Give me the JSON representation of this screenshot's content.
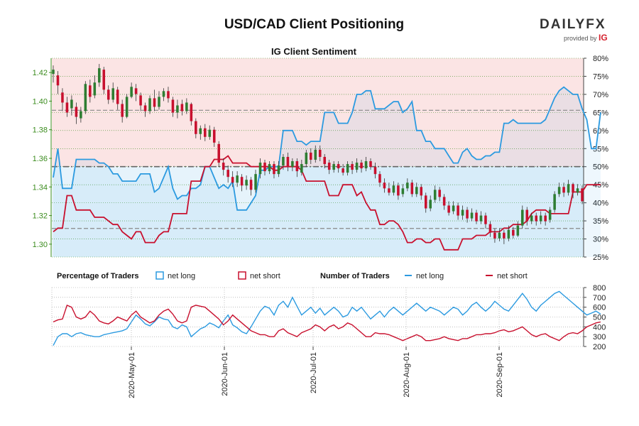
{
  "header": {
    "title": "USD/CAD Client Positioning"
  },
  "brand": {
    "name_part1": "DAILY",
    "name_part2": "FX",
    "tagline": "provided by",
    "tagline_brand": "IG"
  },
  "colors": {
    "long": "#2b9ae0",
    "short": "#c8102e",
    "price_axis": "#3b8c1e",
    "bg_short": "#fbe4e4",
    "bg_long": "#e6f3fb",
    "grid": "#3b8c1e",
    "candle_up": "#2e7d32",
    "candle_down": "#c8102e"
  },
  "chart_data": [
    {
      "id": "sentiment",
      "type": "line",
      "title": "IG Client Sentiment",
      "price_axis": {
        "ticks": [
          "1.42",
          "1.40",
          "1.38",
          "1.36",
          "1.34",
          "1.32",
          "1.30"
        ],
        "range": [
          1.291,
          1.43
        ]
      },
      "pct_axis": {
        "ticks": [
          "80%",
          "75%",
          "70%",
          "65%",
          "60%",
          "55%",
          "50%",
          "45%",
          "40%",
          "35%",
          "30%",
          "25%"
        ],
        "range": [
          25,
          80
        ]
      },
      "reference_lines": {
        "pct_long_mean": 65.6,
        "pct_short_mean": 32.9,
        "midline": 50
      },
      "candles": [
        [
          1.419,
          1.422,
          1.425,
          1.413
        ],
        [
          1.418,
          1.411,
          1.421,
          1.405
        ],
        [
          1.406,
          1.399,
          1.409,
          1.393
        ],
        [
          1.399,
          1.392,
          1.403,
          1.389
        ],
        [
          1.395,
          1.401,
          1.404,
          1.39
        ],
        [
          1.396,
          1.389,
          1.399,
          1.384
        ],
        [
          1.388,
          1.393,
          1.396,
          1.385
        ],
        [
          1.393,
          1.412,
          1.414,
          1.391
        ],
        [
          1.411,
          1.403,
          1.415,
          1.399
        ],
        [
          1.404,
          1.413,
          1.418,
          1.402
        ],
        [
          1.413,
          1.423,
          1.426,
          1.41
        ],
        [
          1.422,
          1.408,
          1.424,
          1.405
        ],
        [
          1.408,
          1.401,
          1.411,
          1.398
        ],
        [
          1.401,
          1.409,
          1.413,
          1.399
        ],
        [
          1.408,
          1.398,
          1.41,
          1.394
        ],
        [
          1.398,
          1.389,
          1.401,
          1.385
        ],
        [
          1.389,
          1.403,
          1.405,
          1.388
        ],
        [
          1.403,
          1.41,
          1.413,
          1.402
        ],
        [
          1.409,
          1.405,
          1.412,
          1.4
        ],
        [
          1.404,
          1.397,
          1.406,
          1.393
        ],
        [
          1.397,
          1.393,
          1.399,
          1.389
        ],
        [
          1.393,
          1.402,
          1.404,
          1.391
        ],
        [
          1.402,
          1.396,
          1.408,
          1.393
        ],
        [
          1.396,
          1.403,
          1.407,
          1.394
        ],
        [
          1.403,
          1.407,
          1.409,
          1.4
        ],
        [
          1.407,
          1.402,
          1.41,
          1.399
        ],
        [
          1.401,
          1.392,
          1.403,
          1.389
        ],
        [
          1.392,
          1.397,
          1.401,
          1.388
        ],
        [
          1.398,
          1.393,
          1.401,
          1.39
        ],
        [
          1.393,
          1.399,
          1.402,
          1.391
        ],
        [
          1.398,
          1.386,
          1.399,
          1.383
        ],
        [
          1.386,
          1.377,
          1.388,
          1.374
        ],
        [
          1.377,
          1.381,
          1.383,
          1.373
        ],
        [
          1.381,
          1.375,
          1.384,
          1.372
        ],
        [
          1.375,
          1.38,
          1.383,
          1.373
        ],
        [
          1.38,
          1.371,
          1.382,
          1.368
        ],
        [
          1.37,
          1.357,
          1.372,
          1.354
        ],
        [
          1.357,
          1.352,
          1.36,
          1.348
        ],
        [
          1.352,
          1.347,
          1.355,
          1.343
        ],
        [
          1.347,
          1.343,
          1.351,
          1.34
        ],
        [
          1.343,
          1.348,
          1.351,
          1.34
        ],
        [
          1.347,
          1.341,
          1.349,
          1.337
        ],
        [
          1.341,
          1.345,
          1.348,
          1.338
        ],
        [
          1.345,
          1.338,
          1.347,
          1.334
        ],
        [
          1.338,
          1.349,
          1.352,
          1.336
        ],
        [
          1.349,
          1.357,
          1.36,
          1.346
        ],
        [
          1.357,
          1.351,
          1.359,
          1.348
        ],
        [
          1.351,
          1.356,
          1.358,
          1.349
        ],
        [
          1.356,
          1.349,
          1.358,
          1.346
        ],
        [
          1.349,
          1.355,
          1.358,
          1.347
        ],
        [
          1.355,
          1.361,
          1.363,
          1.352
        ],
        [
          1.361,
          1.354,
          1.364,
          1.351
        ],
        [
          1.354,
          1.358,
          1.36,
          1.351
        ],
        [
          1.358,
          1.351,
          1.36,
          1.347
        ],
        [
          1.35,
          1.356,
          1.359,
          1.348
        ],
        [
          1.356,
          1.364,
          1.366,
          1.354
        ],
        [
          1.364,
          1.359,
          1.367,
          1.356
        ],
        [
          1.359,
          1.366,
          1.369,
          1.357
        ],
        [
          1.366,
          1.361,
          1.369,
          1.358
        ],
        [
          1.361,
          1.356,
          1.363,
          1.353
        ],
        [
          1.357,
          1.352,
          1.359,
          1.349
        ],
        [
          1.352,
          1.356,
          1.358,
          1.35
        ],
        [
          1.356,
          1.353,
          1.358,
          1.35
        ],
        [
          1.353,
          1.35,
          1.356,
          1.348
        ],
        [
          1.35,
          1.356,
          1.358,
          1.348
        ],
        [
          1.356,
          1.352,
          1.358,
          1.349
        ],
        [
          1.352,
          1.357,
          1.36,
          1.35
        ],
        [
          1.357,
          1.353,
          1.359,
          1.35
        ],
        [
          1.353,
          1.358,
          1.361,
          1.351
        ],
        [
          1.358,
          1.354,
          1.36,
          1.352
        ],
        [
          1.354,
          1.349,
          1.357,
          1.346
        ],
        [
          1.349,
          1.343,
          1.351,
          1.34
        ],
        [
          1.343,
          1.339,
          1.346,
          1.336
        ],
        [
          1.339,
          1.336,
          1.343,
          1.334
        ],
        [
          1.336,
          1.341,
          1.344,
          1.334
        ],
        [
          1.341,
          1.334,
          1.343,
          1.331
        ],
        [
          1.335,
          1.339,
          1.342,
          1.333
        ],
        [
          1.339,
          1.343,
          1.346,
          1.337
        ],
        [
          1.343,
          1.335,
          1.345,
          1.333
        ],
        [
          1.335,
          1.34,
          1.343,
          1.333
        ],
        [
          1.34,
          1.334,
          1.342,
          1.331
        ],
        [
          1.334,
          1.325,
          1.336,
          1.322
        ],
        [
          1.325,
          1.331,
          1.334,
          1.323
        ],
        [
          1.331,
          1.338,
          1.341,
          1.329
        ],
        [
          1.338,
          1.333,
          1.34,
          1.33
        ],
        [
          1.333,
          1.327,
          1.335,
          1.324
        ],
        [
          1.327,
          1.322,
          1.33,
          1.32
        ],
        [
          1.323,
          1.327,
          1.33,
          1.321
        ],
        [
          1.327,
          1.32,
          1.329,
          1.317
        ],
        [
          1.32,
          1.324,
          1.327,
          1.317
        ],
        [
          1.324,
          1.318,
          1.326,
          1.315
        ],
        [
          1.318,
          1.322,
          1.325,
          1.316
        ],
        [
          1.322,
          1.316,
          1.324,
          1.314
        ],
        [
          1.316,
          1.32,
          1.323,
          1.314
        ],
        [
          1.32,
          1.314,
          1.322,
          1.311
        ],
        [
          1.314,
          1.308,
          1.316,
          1.305
        ],
        [
          1.308,
          1.304,
          1.311,
          1.301
        ],
        [
          1.304,
          1.308,
          1.311,
          1.302
        ],
        [
          1.308,
          1.304,
          1.31,
          1.3
        ],
        [
          1.304,
          1.31,
          1.313,
          1.302
        ],
        [
          1.31,
          1.306,
          1.312,
          1.304
        ],
        [
          1.306,
          1.313,
          1.316,
          1.305
        ],
        [
          1.313,
          1.324,
          1.327,
          1.311
        ],
        [
          1.324,
          1.316,
          1.326,
          1.313
        ],
        [
          1.316,
          1.32,
          1.322,
          1.314
        ],
        [
          1.32,
          1.316,
          1.322,
          1.313
        ],
        [
          1.316,
          1.32,
          1.323,
          1.314
        ],
        [
          1.32,
          1.316,
          1.322,
          1.313
        ],
        [
          1.317,
          1.324,
          1.326,
          1.315
        ],
        [
          1.324,
          1.335,
          1.337,
          1.322
        ],
        [
          1.335,
          1.34,
          1.343,
          1.333
        ],
        [
          1.34,
          1.336,
          1.343,
          1.333
        ],
        [
          1.336,
          1.342,
          1.345,
          1.334
        ],
        [
          1.342,
          1.336,
          1.343,
          1.332
        ],
        [
          1.336,
          1.339,
          1.342,
          1.334
        ],
        [
          1.339,
          1.33,
          1.341,
          1.328
        ]
      ],
      "net_long_pct": [
        47,
        55,
        44,
        44,
        44,
        52,
        52,
        52,
        52,
        52,
        51,
        51,
        50,
        48,
        48,
        46,
        46,
        46,
        46,
        48,
        48,
        48,
        43,
        44,
        47,
        50,
        44,
        41,
        42,
        42,
        44,
        44,
        45,
        50,
        50,
        47,
        44,
        45,
        44,
        46,
        38,
        38,
        38,
        40,
        42,
        49,
        49,
        50,
        50,
        50,
        60,
        60,
        60,
        57,
        57,
        56,
        57,
        57,
        57,
        65,
        65,
        65,
        62,
        62,
        62,
        65,
        70,
        70,
        71,
        71,
        66,
        66,
        66,
        67,
        68,
        68,
        65,
        66,
        68,
        60,
        60,
        57,
        57,
        55,
        55,
        55,
        53,
        51,
        51,
        54,
        55,
        53,
        52,
        52,
        53,
        53,
        54,
        54,
        62,
        62,
        63,
        62,
        62,
        62,
        62,
        62,
        62,
        63,
        66,
        69,
        71,
        72,
        71,
        70,
        70,
        66,
        63,
        55,
        55,
        65
      ],
      "net_short_pct": [
        32,
        33,
        33,
        42,
        42,
        38,
        38,
        38,
        38,
        36,
        36,
        36,
        35,
        34,
        34,
        32,
        31,
        30,
        32,
        32,
        29,
        29,
        29,
        31,
        32,
        32,
        37,
        37,
        37,
        37,
        46,
        46,
        46,
        50,
        50,
        52,
        52,
        52,
        53,
        51,
        51,
        51,
        51,
        50,
        50,
        50,
        50,
        50,
        49,
        49,
        50,
        50,
        50,
        50,
        49,
        46,
        46,
        46,
        46,
        46,
        42,
        42,
        42,
        45,
        45,
        45,
        42,
        43,
        40,
        38,
        38,
        34,
        34,
        35,
        35,
        34,
        32,
        29,
        29,
        30,
        30,
        29,
        29,
        30,
        30,
        27,
        27,
        27,
        27,
        30,
        30,
        30,
        31,
        31,
        31,
        32,
        32,
        32,
        33,
        33,
        34,
        34,
        34,
        35,
        37,
        38,
        38,
        38,
        37,
        37,
        37,
        37,
        37,
        43,
        43,
        43,
        45,
        45,
        45,
        45
      ]
    },
    {
      "id": "traders",
      "type": "line",
      "y_axis": {
        "ticks": [
          "800",
          "700",
          "600",
          "500",
          "400",
          "300",
          "200"
        ],
        "range": [
          200,
          800
        ]
      },
      "x_axis": {
        "ticks": [
          "2020-May-01",
          "2020-Jun-01",
          "2020-Jul-01",
          "2020-Aug-01",
          "2020-Sep-01"
        ]
      },
      "net_long_count": [
        210,
        300,
        330,
        330,
        300,
        330,
        340,
        320,
        310,
        300,
        300,
        320,
        330,
        340,
        350,
        360,
        380,
        450,
        520,
        480,
        430,
        410,
        450,
        500,
        480,
        470,
        400,
        380,
        420,
        400,
        300,
        340,
        380,
        400,
        440,
        420,
        390,
        460,
        520,
        420,
        390,
        350,
        330,
        400,
        480,
        560,
        610,
        590,
        520,
        620,
        660,
        600,
        700,
        610,
        520,
        560,
        600,
        540,
        590,
        520,
        560,
        600,
        560,
        500,
        520,
        600,
        560,
        600,
        540,
        480,
        520,
        560,
        500,
        560,
        600,
        560,
        520,
        560,
        600,
        640,
        600,
        560,
        600,
        580,
        560,
        520,
        560,
        600,
        580,
        520,
        560,
        620,
        650,
        600,
        560,
        600,
        660,
        620,
        580,
        560,
        620,
        680,
        740,
        680,
        600,
        560,
        620,
        660,
        700,
        740,
        760,
        720,
        680,
        640,
        600,
        560,
        520,
        540,
        560,
        530
      ],
      "net_short_count": [
        450,
        470,
        480,
        620,
        600,
        500,
        480,
        500,
        560,
        520,
        460,
        440,
        430,
        460,
        500,
        480,
        460,
        520,
        560,
        500,
        470,
        440,
        460,
        520,
        560,
        580,
        530,
        460,
        440,
        460,
        600,
        620,
        610,
        600,
        560,
        520,
        480,
        420,
        460,
        520,
        480,
        440,
        400,
        360,
        340,
        320,
        320,
        300,
        300,
        360,
        380,
        340,
        320,
        300,
        340,
        360,
        380,
        420,
        400,
        360,
        400,
        420,
        380,
        400,
        440,
        420,
        380,
        340,
        300,
        300,
        340,
        330,
        330,
        320,
        300,
        280,
        260,
        280,
        300,
        320,
        300,
        260,
        260,
        270,
        280,
        300,
        280,
        270,
        260,
        280,
        280,
        300,
        320,
        320,
        330,
        330,
        340,
        360,
        370,
        350,
        360,
        380,
        400,
        360,
        320,
        300,
        320,
        330,
        300,
        280,
        260,
        300,
        330,
        340,
        330,
        360,
        400,
        420,
        440,
        450
      ],
      "legend": {
        "pct_label": "Percentage of Traders",
        "num_label": "Number of Traders",
        "net_long": "net long",
        "net_short": "net short"
      }
    }
  ]
}
